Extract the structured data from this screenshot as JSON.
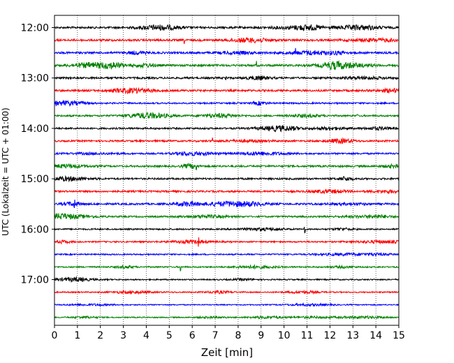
{
  "chart_data": {
    "type": "line",
    "title": "",
    "xlabel": "Zeit  [min]",
    "ylabel": "UTC (Lokalzeit = UTC + 01:00)",
    "xlim": [
      0,
      15
    ],
    "x_ticks": [
      0,
      1,
      2,
      3,
      4,
      5,
      6,
      7,
      8,
      9,
      10,
      11,
      12,
      13,
      14,
      15
    ],
    "x_tick_labels": [
      "0",
      "1",
      "2",
      "3",
      "4",
      "5",
      "6",
      "7",
      "8",
      "9",
      "10",
      "11",
      "12",
      "13",
      "14",
      "15"
    ],
    "y_tick_labels": [
      "12:00",
      "13:00",
      "14:00",
      "15:00",
      "16:00",
      "17:00"
    ],
    "grid": "vertical dotted at each minute",
    "trace_colors": [
      "#000000",
      "#ff0000",
      "#0000ff",
      "#008000"
    ],
    "trace_interval_minutes": 15,
    "traces_start": "12:00",
    "trace_count": 24,
    "trace_activity": [
      {
        "start": "12:00",
        "level": 0.55
      },
      {
        "start": "12:15",
        "level": 0.6
      },
      {
        "start": "12:30",
        "level": 0.6
      },
      {
        "start": "12:45",
        "level": 0.6
      },
      {
        "start": "13:00",
        "level": 0.5
      },
      {
        "start": "13:15",
        "level": 0.55
      },
      {
        "start": "13:30",
        "level": 0.35
      },
      {
        "start": "13:45",
        "level": 0.4
      },
      {
        "start": "14:00",
        "level": 0.45
      },
      {
        "start": "14:15",
        "level": 0.45
      },
      {
        "start": "14:30",
        "level": 0.4
      },
      {
        "start": "14:45",
        "level": 0.5
      },
      {
        "start": "15:00",
        "level": 0.45
      },
      {
        "start": "15:15",
        "level": 0.5
      },
      {
        "start": "15:30",
        "level": 0.5
      },
      {
        "start": "15:45",
        "level": 0.35
      },
      {
        "start": "16:00",
        "level": 0.3
      },
      {
        "start": "16:15",
        "level": 0.3
      },
      {
        "start": "16:30",
        "level": 0.25
      },
      {
        "start": "16:45",
        "level": 0.25
      },
      {
        "start": "17:00",
        "level": 0.2
      },
      {
        "start": "17:15",
        "level": 0.2
      },
      {
        "start": "17:30",
        "level": 0.1
      },
      {
        "start": "17:45",
        "level": 0.12
      }
    ]
  }
}
